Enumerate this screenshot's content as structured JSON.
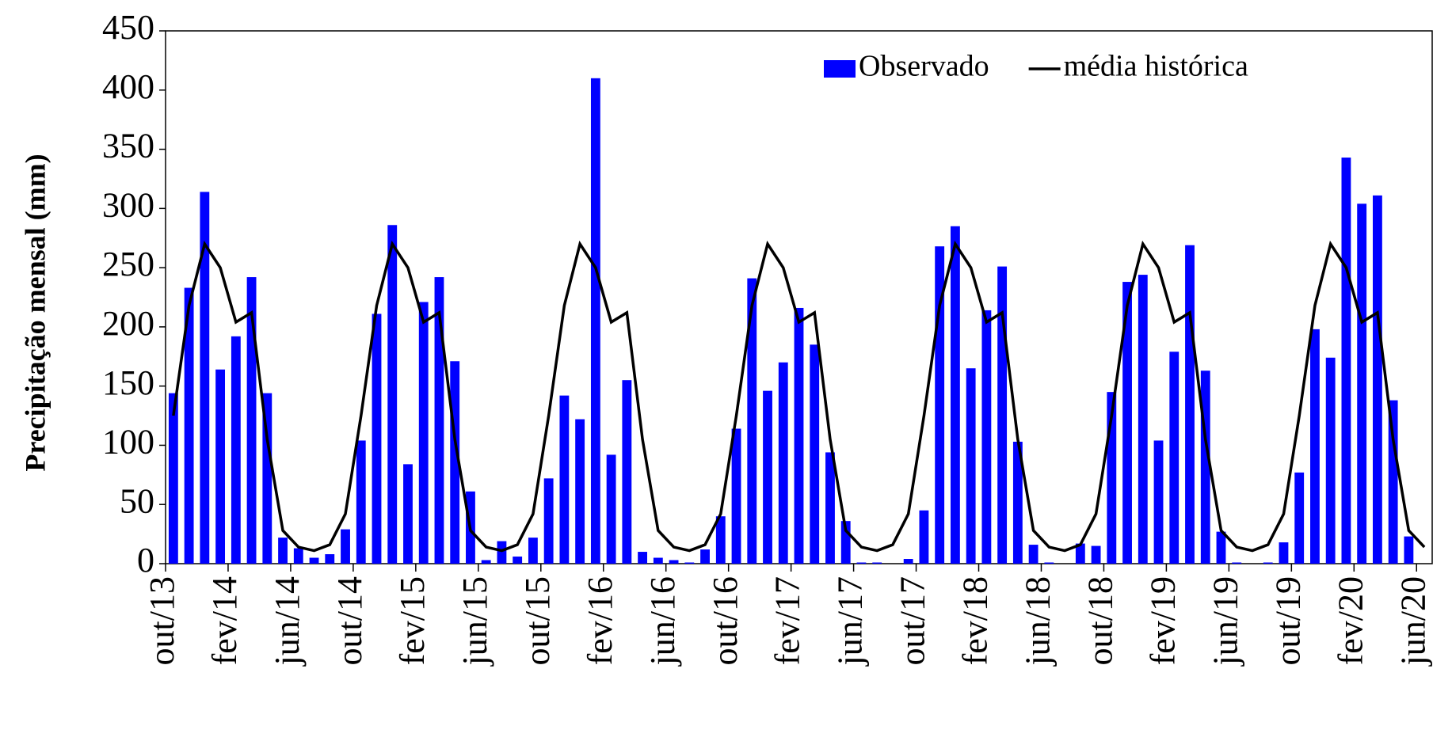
{
  "chart_data": {
    "type": "bar",
    "y_label": "Precipitação mensal (mm)",
    "categories": [
      "out/13",
      null,
      null,
      null,
      "fev/14",
      null,
      null,
      null,
      "jun/14",
      null,
      null,
      null,
      "out/14",
      null,
      null,
      null,
      "fev/15",
      null,
      null,
      null,
      "jun/15",
      null,
      null,
      null,
      "out/15",
      null,
      null,
      null,
      "fev/16",
      null,
      null,
      null,
      "jun/16",
      null,
      null,
      null,
      "out/16",
      null,
      null,
      null,
      "fev/17",
      null,
      null,
      null,
      "jun/17",
      null,
      null,
      null,
      "out/17",
      null,
      null,
      null,
      "fev/18",
      null,
      null,
      null,
      "jun/18",
      null,
      null,
      null,
      "out/18",
      null,
      null,
      null,
      "fev/19",
      null,
      null,
      null,
      "jun/19",
      null,
      null,
      null,
      "out/19",
      null,
      null,
      null,
      "fev/20",
      null,
      null,
      null,
      "jun/20"
    ],
    "series": [
      {
        "name": "Observado",
        "type": "bar",
        "color": "#0000ff",
        "values": [
          144,
          233,
          314,
          164,
          192,
          242,
          144,
          22,
          13,
          5,
          8,
          29,
          104,
          211,
          286,
          84,
          221,
          242,
          171,
          61,
          3,
          19,
          6,
          22,
          72,
          142,
          122,
          410,
          92,
          155,
          10,
          5,
          3,
          1,
          12,
          40,
          114,
          241,
          146,
          170,
          216,
          185,
          94,
          36,
          1,
          1,
          0,
          4,
          45,
          268,
          285,
          165,
          214,
          251,
          103,
          16,
          1,
          0,
          17,
          15,
          145,
          238,
          244,
          104,
          179,
          269,
          163,
          27,
          1,
          0,
          1,
          18,
          77,
          198,
          174,
          343,
          304,
          311,
          138,
          23,
          0
        ]
      },
      {
        "name": "média histórica",
        "type": "line",
        "color": "#000000",
        "values": [
          125,
          218,
          270,
          250,
          204,
          212,
          105,
          28,
          14,
          11,
          16,
          42,
          125,
          218,
          270,
          250,
          204,
          212,
          105,
          28,
          14,
          11,
          16,
          42,
          125,
          218,
          270,
          250,
          204,
          212,
          105,
          28,
          14,
          11,
          16,
          42,
          125,
          218,
          270,
          250,
          204,
          212,
          105,
          28,
          14,
          11,
          16,
          42,
          125,
          218,
          270,
          250,
          204,
          212,
          105,
          28,
          14,
          11,
          16,
          42,
          125,
          218,
          270,
          250,
          204,
          212,
          105,
          28,
          14,
          11,
          16,
          42,
          125,
          218,
          270,
          250,
          204,
          212,
          105,
          28,
          14
        ]
      }
    ],
    "ylim": [
      0,
      450
    ],
    "yticks": [
      0,
      50,
      100,
      150,
      200,
      250,
      300,
      350,
      400,
      450
    ],
    "grid": false,
    "legend": "upper right"
  }
}
